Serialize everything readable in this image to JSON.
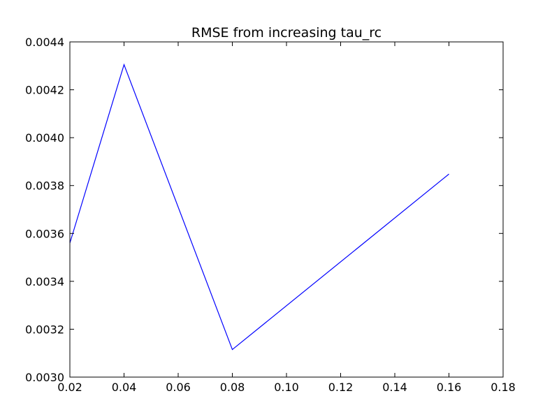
{
  "chart_data": {
    "type": "line",
    "title": "RMSE from increasing tau_rc",
    "xlabel": "",
    "ylabel": "",
    "xlim": [
      0.02,
      0.18
    ],
    "ylim": [
      0.003,
      0.0044
    ],
    "xticks": [
      0.02,
      0.04,
      0.06,
      0.08,
      0.1,
      0.12,
      0.14,
      0.16,
      0.18
    ],
    "xtick_labels": [
      "0.02",
      "0.04",
      "0.06",
      "0.08",
      "0.10",
      "0.12",
      "0.14",
      "0.16",
      "0.18"
    ],
    "yticks": [
      0.003,
      0.0032,
      0.0034,
      0.0036,
      0.0038,
      0.004,
      0.0042,
      0.0044
    ],
    "ytick_labels": [
      "0.0030",
      "0.0032",
      "0.0034",
      "0.0036",
      "0.0038",
      "0.0040",
      "0.0042",
      "0.0044"
    ],
    "grid": false,
    "series": [
      {
        "color": "#0000ff",
        "x": [
          0.02,
          0.04,
          0.08,
          0.16
        ],
        "y": [
          0.00356,
          0.004305,
          0.003115,
          0.003848
        ]
      }
    ]
  }
}
